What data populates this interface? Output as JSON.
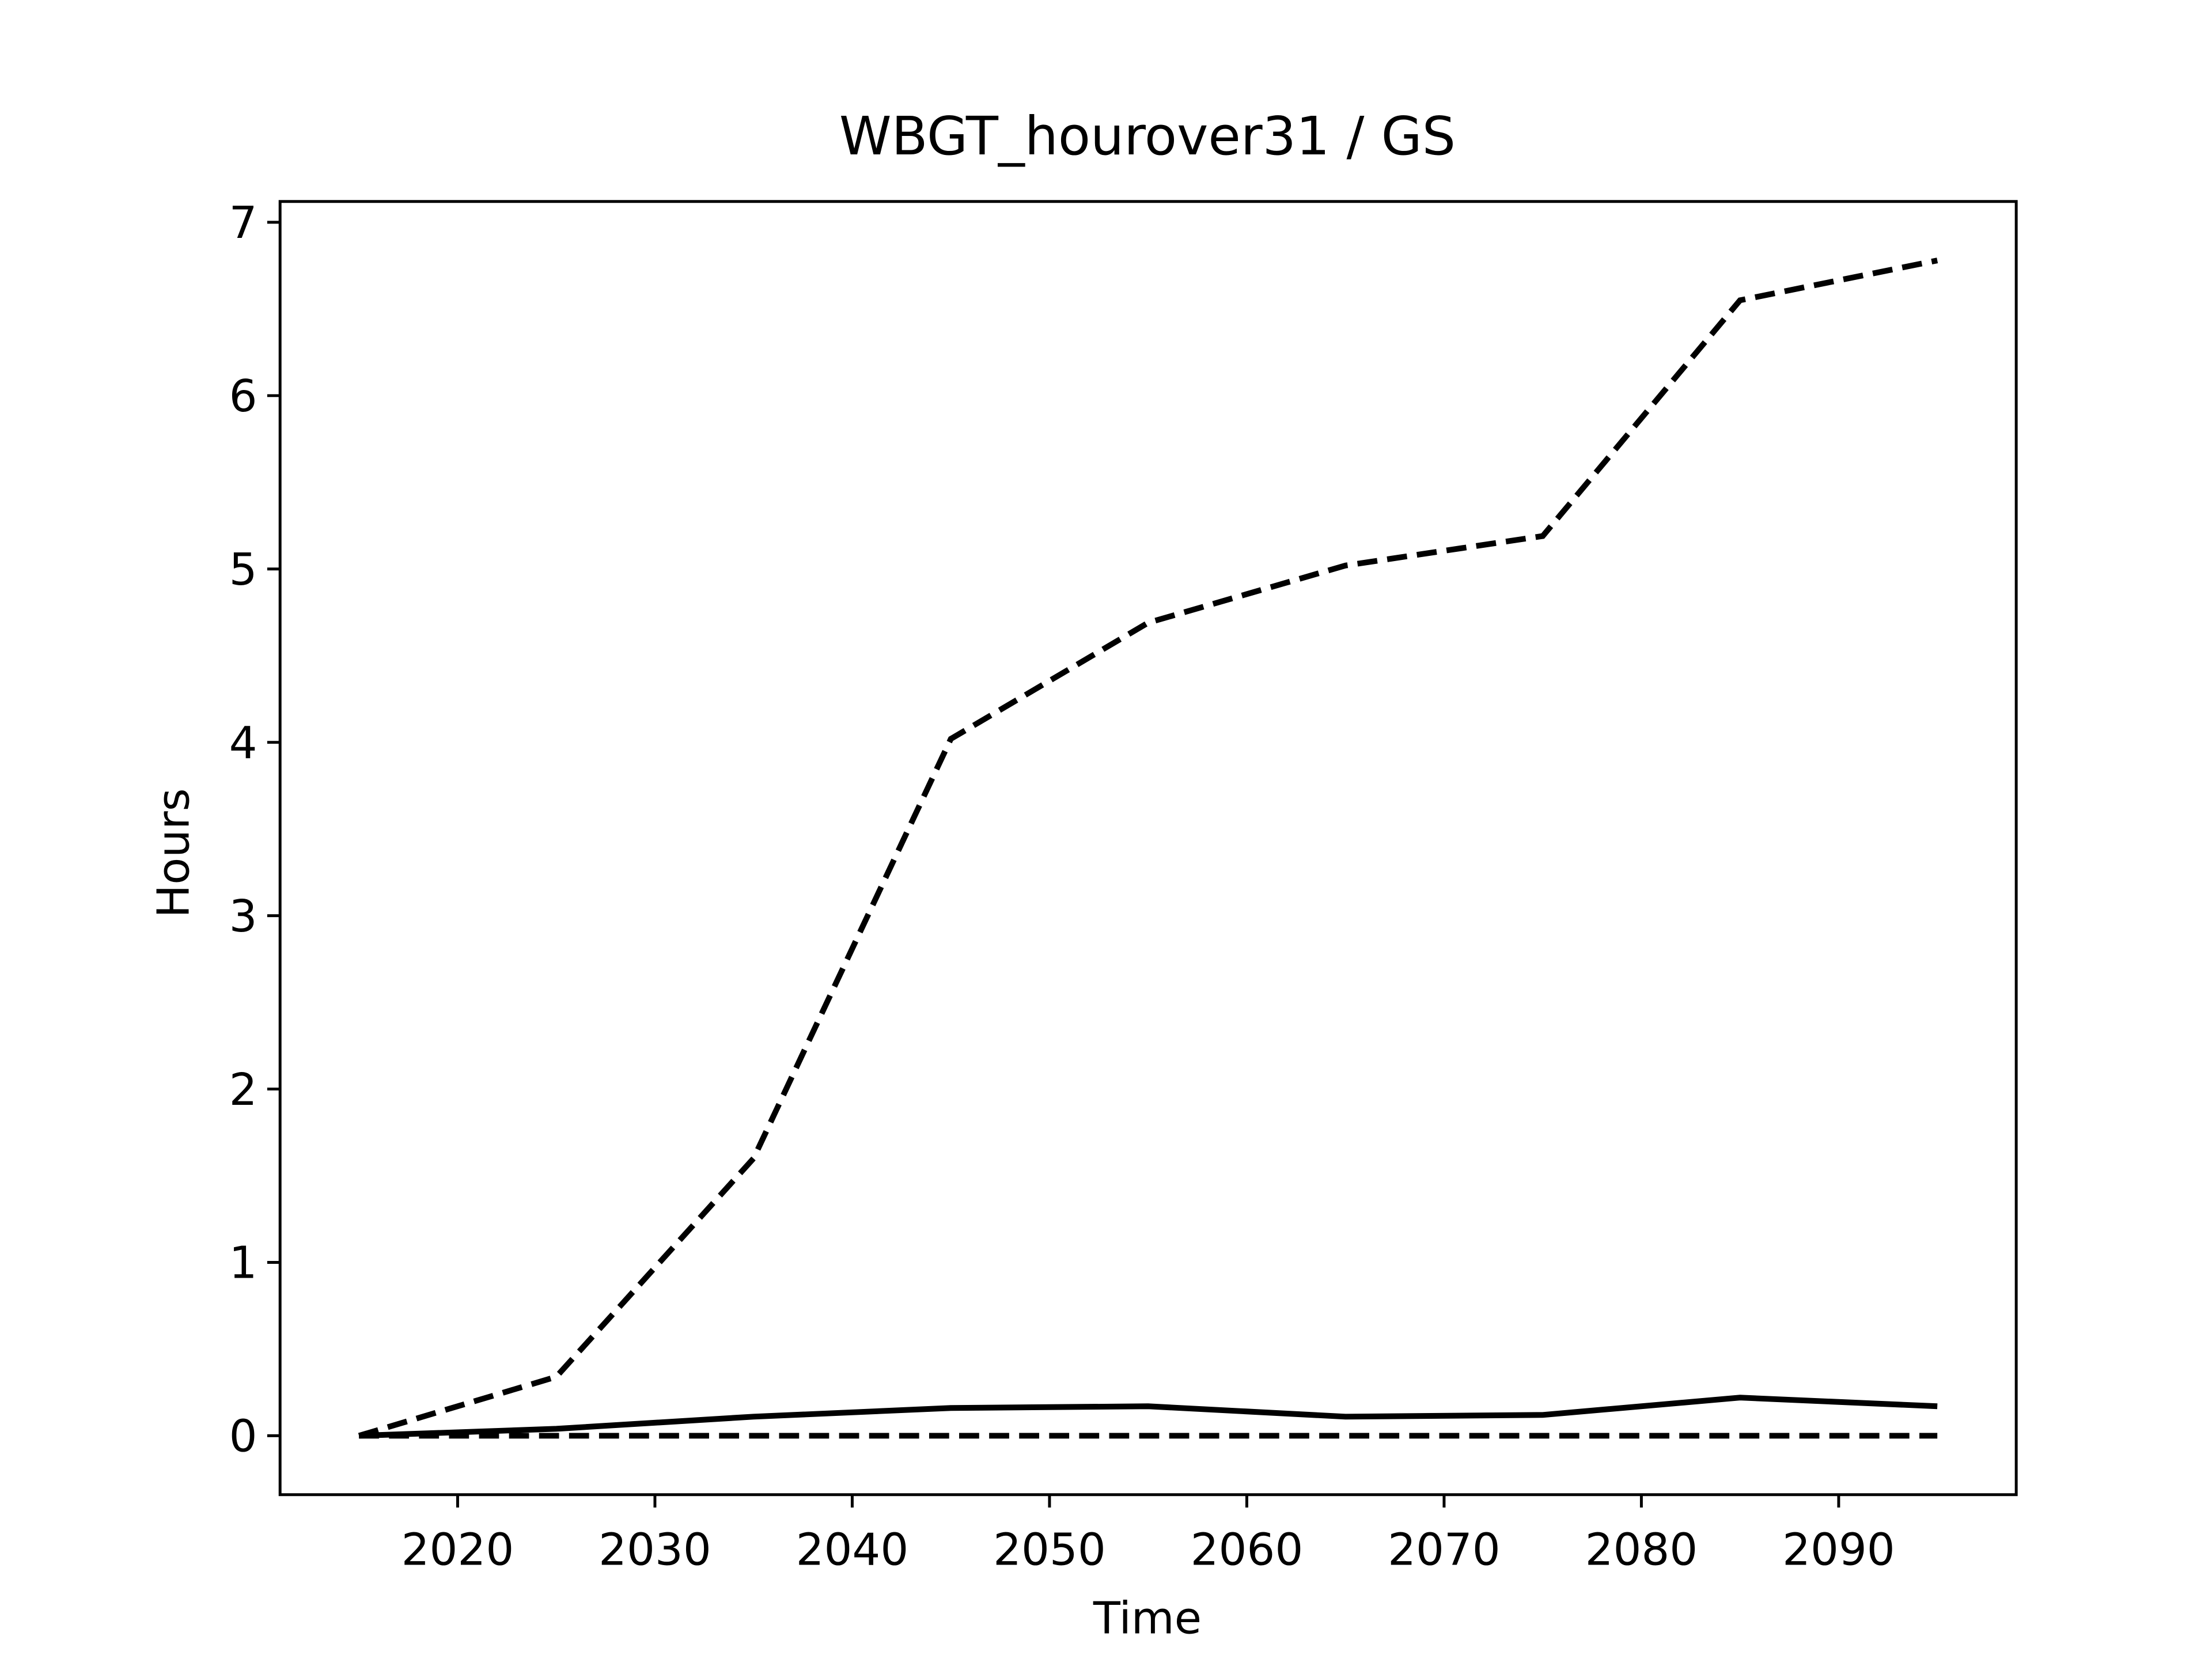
{
  "chart_data": {
    "type": "line",
    "title": "WBGT_hourover31 / GS",
    "xlabel": "Time",
    "ylabel": "Hours",
    "x": [
      2015,
      2025,
      2035,
      2045,
      2055,
      2065,
      2075,
      2085,
      2095
    ],
    "series": [
      {
        "color": "#000000",
        "dashed": true,
        "values": [
          0,
          0.34,
          1.6,
          4.02,
          4.69,
          5.02,
          5.19,
          6.55,
          6.78
        ]
      },
      {
        "color": "#000000",
        "dashed": false,
        "values": [
          0,
          0.04,
          0.11,
          0.16,
          0.17,
          0.11,
          0.12,
          0.22,
          0.17
        ]
      },
      {
        "color": "#000000",
        "dashed": true,
        "values": [
          0,
          0,
          0,
          0,
          0,
          0,
          0,
          0,
          0
        ]
      }
    ],
    "xlim": [
      2011,
      2099
    ],
    "xticks": [
      2020,
      2030,
      2040,
      2050,
      2060,
      2070,
      2080,
      2090
    ],
    "ylim": [
      -0.34,
      7.12
    ],
    "yticks": [
      0,
      1,
      2,
      3,
      4,
      5,
      6,
      7
    ],
    "grid": false
  }
}
